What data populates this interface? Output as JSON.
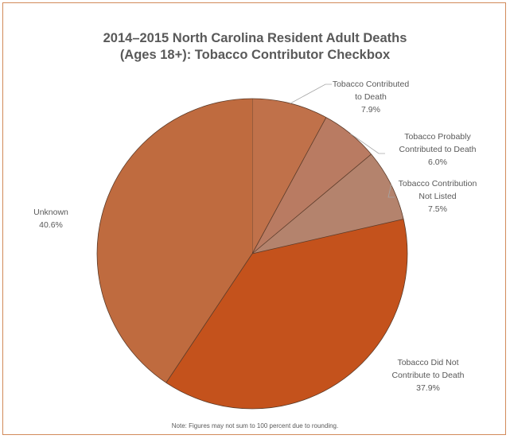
{
  "chart_data": {
    "type": "pie",
    "title": [
      "2014–2015 North Carolina Resident Adult Deaths",
      "(Ages 18+): Tobacco Contributor Checkbox"
    ],
    "slices": [
      {
        "name": [
          "Tobacco Contributed",
          "to Death"
        ],
        "value": 7.9,
        "label": "7.9%",
        "color": "#c0714a"
      },
      {
        "name": [
          "Tobacco Probably",
          "Contributed to Death"
        ],
        "value": 6.0,
        "label": "6.0%",
        "color": "#b97b62"
      },
      {
        "name": [
          "Tobacco Contribution",
          "Not Listed"
        ],
        "value": 7.5,
        "label": "7.5%",
        "color": "#b4836d"
      },
      {
        "name": [
          "Tobacco Did Not",
          "Contribute to Death"
        ],
        "value": 37.9,
        "label": "37.9%",
        "color": "#c4521c"
      },
      {
        "name": [
          "Unknown"
        ],
        "value": 40.6,
        "label": "40.6%",
        "color": "#bf6b3f"
      }
    ],
    "note": "Note: Figures may not sum to 100 percent due to rounding.",
    "legend": "none"
  }
}
